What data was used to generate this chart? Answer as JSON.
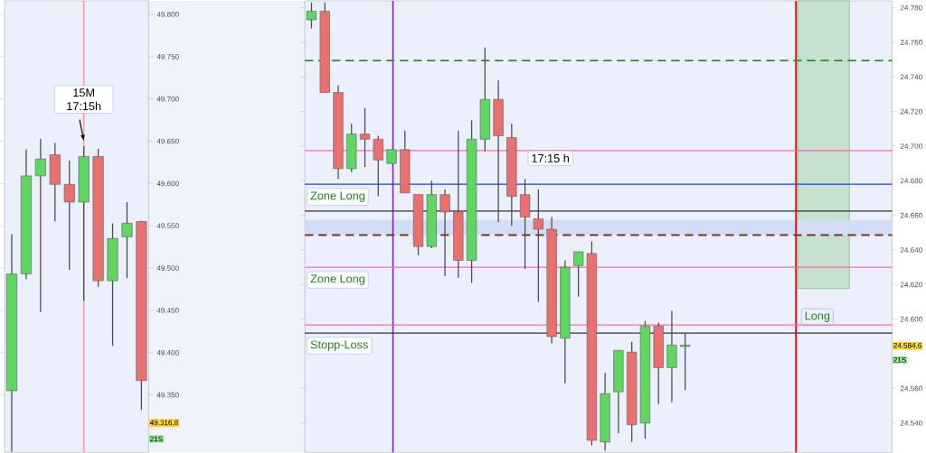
{
  "chart_data": [
    {
      "type": "candlestick",
      "categories": [
        null,
        null,
        null,
        null,
        null,
        null,
        null,
        null,
        null,
        null
      ],
      "ohlc": [
        [
          49355,
          49540,
          49283,
          49493
        ],
        [
          49493,
          49640,
          49487,
          49609
        ],
        [
          49609,
          49653,
          49448,
          49629
        ],
        [
          49634,
          49648,
          49555,
          49599
        ],
        [
          49599,
          49627,
          49498,
          49578
        ],
        [
          49578,
          49644,
          49461,
          49632
        ],
        [
          49632,
          49641,
          49478,
          49485
        ],
        [
          49485,
          49553,
          49408,
          49535
        ],
        [
          49537,
          49578,
          49488,
          49553
        ],
        [
          49555,
          49556,
          49332,
          49367
        ]
      ],
      "ylim": [
        49282,
        49816
      ],
      "tick_labels": "y",
      "yticks": [
        {
          "value": 49350,
          "label": "49.350"
        },
        {
          "value": 49400,
          "label": "49.400"
        },
        {
          "value": 49450,
          "label": "49.450"
        },
        {
          "value": 49500,
          "label": "49.500"
        },
        {
          "value": 49550,
          "label": "49.550"
        },
        {
          "value": 49600,
          "label": "49.600"
        },
        {
          "value": 49650,
          "label": "49.650"
        },
        {
          "value": 49700,
          "label": "49.700"
        },
        {
          "value": 49750,
          "label": "49.750"
        },
        {
          "value": 49800,
          "label": "49.800"
        }
      ],
      "annotations": [
        "15M 17:15h",
        "49.316,8",
        "21S"
      ]
    },
    {
      "type": "candlestick",
      "categories": [
        null,
        null,
        null,
        null,
        null,
        null,
        null,
        null,
        null,
        null,
        null,
        null,
        null,
        null,
        null,
        null,
        null,
        null,
        null,
        null,
        null,
        null,
        null,
        null,
        null,
        null,
        null,
        null,
        null,
        null,
        null,
        null,
        null,
        null,
        null,
        null,
        null,
        null,
        null,
        null,
        null,
        null,
        null,
        null
      ],
      "ohlc": [
        [
          24773,
          24783,
          24768,
          24778
        ],
        [
          24778,
          24783,
          24731,
          24731
        ],
        [
          24731,
          24735,
          24681,
          24687
        ],
        [
          24687,
          24713,
          24685,
          24707
        ],
        [
          24707,
          24722,
          24688,
          24704
        ],
        [
          24704,
          24706,
          24671,
          24692
        ],
        [
          24690,
          24698,
          24690,
          24698
        ],
        [
          24698,
          24709,
          24673,
          24673
        ],
        [
          24672,
          24672,
          24637,
          24642
        ],
        [
          24642,
          24680,
          24641,
          24672
        ],
        [
          24672,
          24675,
          24625,
          24662
        ],
        [
          24662,
          24709,
          24624,
          24634
        ],
        [
          24634,
          24715,
          24621,
          24704
        ],
        [
          24704,
          24757,
          24697,
          24727
        ],
        [
          24727,
          24738,
          24656,
          24706
        ],
        [
          24705,
          24713,
          24654,
          24671
        ],
        [
          24672,
          24681,
          24629,
          24659
        ],
        [
          24658,
          24675,
          24610,
          24652
        ],
        [
          24652,
          24659,
          24586,
          24590
        ],
        [
          24589,
          24634,
          24563,
          24630
        ],
        [
          24631,
          24639,
          24613,
          24639
        ],
        [
          24638,
          24645,
          24527,
          24530
        ],
        [
          24529,
          24569,
          24524,
          24557
        ],
        [
          24558,
          24582,
          24534,
          24582
        ],
        [
          24581,
          24587,
          24529,
          24539
        ],
        [
          24540,
          24599,
          24531,
          24596
        ],
        [
          24596,
          24598,
          24551,
          24572
        ],
        [
          24572,
          24605,
          24552,
          24585
        ],
        [
          24584.6,
          24592,
          24559,
          24584.6
        ],
        null,
        null,
        null,
        null,
        null,
        null,
        null,
        null,
        null,
        null,
        null,
        null,
        null,
        null,
        null
      ],
      "ylim": [
        24523,
        24784
      ],
      "tick_labels": "y",
      "yticks": [
        {
          "value": 24540,
          "label": "24.540"
        },
        {
          "value": 24560,
          "label": "24.560"
        },
        {
          "value": 24600,
          "label": "24.600"
        },
        {
          "value": 24620,
          "label": "24.620"
        },
        {
          "value": 24640,
          "label": "24.640"
        },
        {
          "value": 24660,
          "label": "24.660"
        },
        {
          "value": 24680,
          "label": "24.680"
        },
        {
          "value": 24700,
          "label": "24.700"
        },
        {
          "value": 24720,
          "label": "24.720"
        },
        {
          "value": 24740,
          "label": "24.740"
        },
        {
          "value": 24760,
          "label": "24.760"
        },
        {
          "value": 24780,
          "label": "24.780"
        }
      ],
      "bands": [
        {
          "axis": "y",
          "from": 24648.6,
          "to": 24657.5,
          "label": null,
          "color": "#d2ddf7"
        }
      ],
      "ref_lines": [
        {
          "axis": "y",
          "value": 24749.5,
          "label": null,
          "color": "#2e8b2e",
          "line_style": "dashed"
        },
        {
          "axis": "y",
          "value": 24697.5,
          "label": null,
          "color": "#ff69b4",
          "line_style": "solid"
        },
        {
          "axis": "y",
          "value": 24678,
          "label": "Zone Long",
          "color": "#1a3cff",
          "line_style": "solid"
        },
        {
          "axis": "y",
          "value": 24662.5,
          "label": null,
          "color": "#333333",
          "line_style": "solid"
        },
        {
          "axis": "y",
          "value": 24648.6,
          "label": null,
          "color": "#7a3b0a",
          "line_style": "dashed"
        },
        {
          "axis": "y",
          "value": 24630,
          "label": "Zone Long",
          "color": "#ff69b4",
          "line_style": "solid"
        },
        {
          "axis": "y",
          "value": 24596.6,
          "label": null,
          "color": "#ff69b4",
          "line_style": "solid"
        },
        {
          "axis": "y",
          "value": 24592,
          "label": "Stopp-Loss",
          "color": "#333333",
          "line_style": "solid"
        }
      ],
      "annotations": [
        "17:15 h",
        "24.584,6",
        "21S",
        "Long"
      ]
    }
  ]
}
